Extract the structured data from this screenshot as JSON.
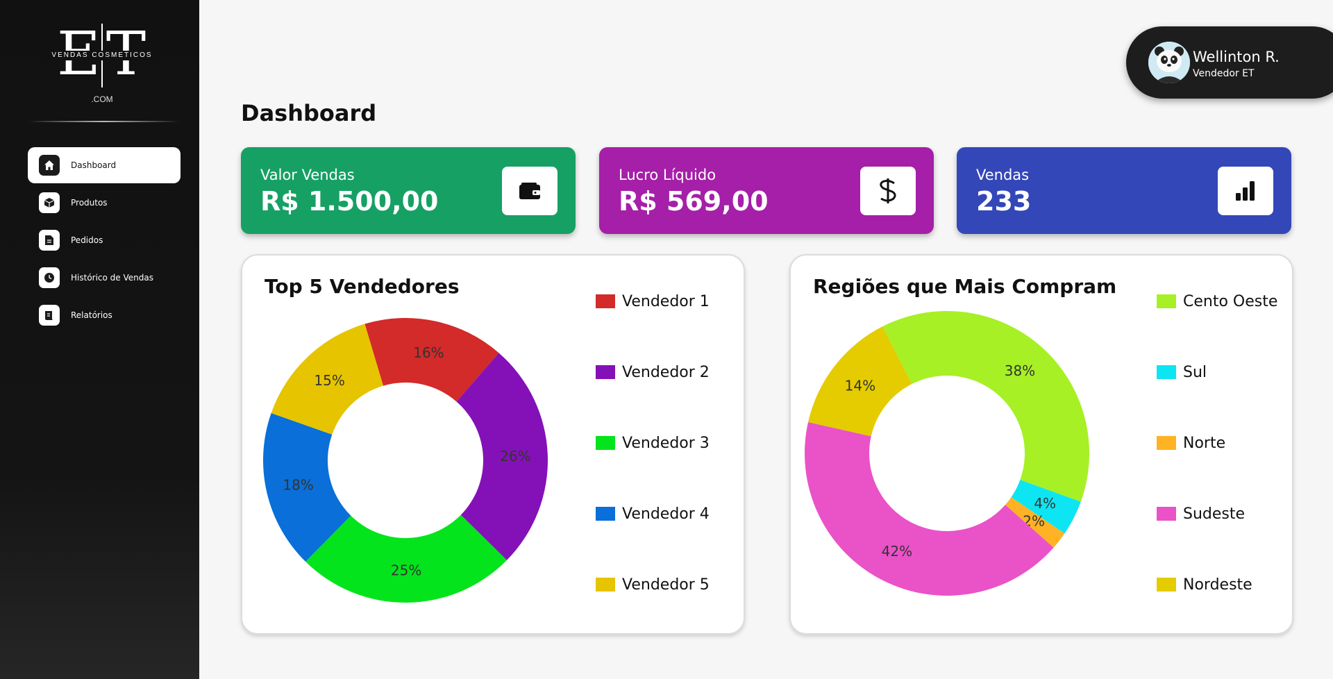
{
  "brand": {
    "letters": "ET",
    "tagline": "VENDAS COSMETICOS",
    "suffix": ".COM"
  },
  "sidebar": {
    "items": [
      {
        "label": "Dashboard",
        "icon": "home-icon",
        "active": true
      },
      {
        "label": "Produtos",
        "icon": "box-icon",
        "active": false
      },
      {
        "label": "Pedidos",
        "icon": "document-icon",
        "active": false
      },
      {
        "label": "Histórico de Vendas",
        "icon": "clock-icon",
        "active": false
      },
      {
        "label": "Relatórios",
        "icon": "report-icon",
        "active": false
      }
    ]
  },
  "user": {
    "name": "Wellinton R.",
    "role": "Vendedor ET",
    "avatar": "panda-avatar"
  },
  "page": {
    "title": "Dashboard"
  },
  "kpis": [
    {
      "label": "Valor Vendas",
      "value": "R$ 1.500,00",
      "icon": "wallet-icon",
      "color": "#16a064"
    },
    {
      "label": "Lucro Líquido",
      "value": "R$ 569,00",
      "icon": "dollar-icon",
      "color": "#a51fa8"
    },
    {
      "label": "Vendas",
      "value": "233",
      "icon": "bar-chart-icon",
      "color": "#3447b8"
    }
  ],
  "chart_data": [
    {
      "type": "pie",
      "title": "Top 5 Vendedores",
      "legend_position": "right",
      "categories": [
        "Vendedor 1",
        "Vendedor 2",
        "Vendedor 3",
        "Vendedor 4",
        "Vendedor 5"
      ],
      "values": [
        16,
        26,
        25,
        18,
        15
      ],
      "labels": [
        "16%",
        "26%",
        "25%",
        "18%",
        "15%"
      ],
      "colors": [
        "#d32a2a",
        "#8411b7",
        "#04e41c",
        "#0a6fd8",
        "#e6c400"
      ]
    },
    {
      "type": "pie",
      "title": "Regiões que Mais Compram",
      "legend_position": "right",
      "categories": [
        "Cento Oeste",
        "Sul",
        "Norte",
        "Sudeste",
        "Nordeste"
      ],
      "values": [
        38,
        4,
        2,
        42,
        14
      ],
      "labels": [
        "38%",
        "4%",
        "2%",
        "42%",
        "14%"
      ],
      "colors": [
        "#a6f025",
        "#0ee5f2",
        "#ffb224",
        "#ea52c8",
        "#e4cc00"
      ]
    }
  ]
}
